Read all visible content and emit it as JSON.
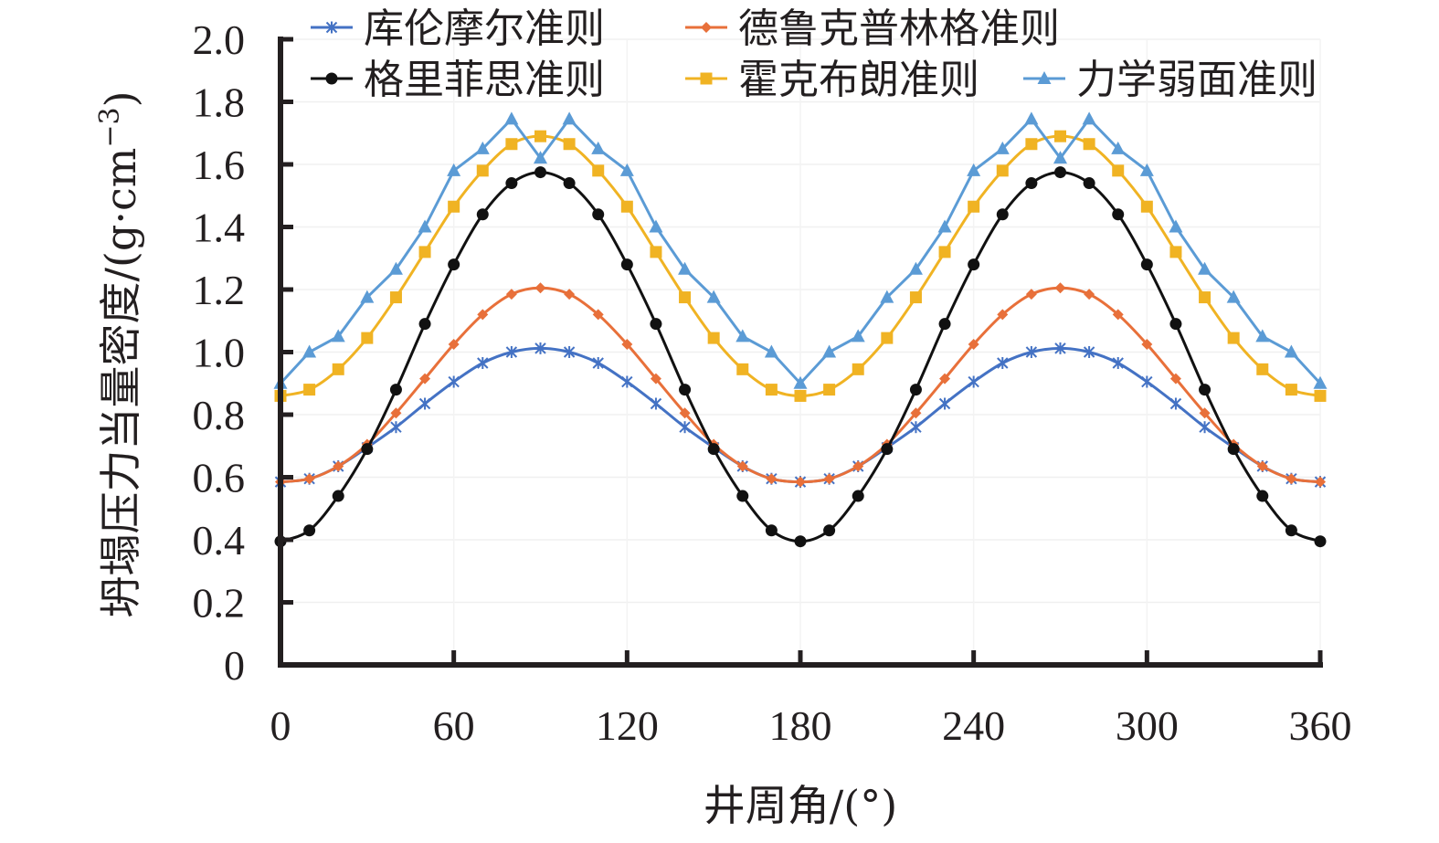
{
  "chart_data": {
    "type": "line",
    "title": "",
    "xlabel": "井周角/(°)",
    "ylabel": "坍塌压力当量密度/(g·cm",
    "ylabel_superscript": "−3",
    "ylabel_close": ")",
    "xlim": [
      0,
      360
    ],
    "ylim": [
      0,
      2.0
    ],
    "xticks": [
      0,
      60,
      120,
      180,
      240,
      300,
      360
    ],
    "xtick_labels": [
      "0",
      "60",
      "120",
      "180",
      "240",
      "300",
      "360"
    ],
    "yticks": [
      0,
      0.2,
      0.4,
      0.6,
      0.8,
      1.0,
      1.2,
      1.4,
      1.6,
      1.8,
      2.0
    ],
    "ytick_labels": [
      "0",
      "0.2",
      "0.4",
      "0.6",
      "0.8",
      "1.0",
      "1.2",
      "1.4",
      "1.6",
      "1.8",
      "2.0"
    ],
    "grid": true,
    "legend_position": "top",
    "x": [
      0,
      10,
      20,
      30,
      40,
      50,
      60,
      70,
      80,
      90,
      100,
      110,
      120,
      130,
      140,
      150,
      160,
      170,
      180,
      190,
      200,
      210,
      220,
      230,
      240,
      250,
      260,
      270,
      280,
      290,
      300,
      310,
      320,
      330,
      340,
      350,
      360
    ],
    "series": [
      {
        "name": "库伦摩尔准则",
        "color": "#4472c4",
        "marker": "asterisk",
        "smooth": true,
        "values": [
          0.585,
          0.595,
          0.635,
          0.695,
          0.76,
          0.835,
          0.905,
          0.965,
          1.0,
          1.012,
          1.0,
          0.965,
          0.905,
          0.835,
          0.76,
          0.695,
          0.635,
          0.595,
          0.585,
          0.595,
          0.635,
          0.695,
          0.76,
          0.835,
          0.905,
          0.965,
          1.0,
          1.012,
          1.0,
          0.965,
          0.905,
          0.835,
          0.76,
          0.695,
          0.635,
          0.595,
          0.585
        ]
      },
      {
        "name": "德鲁克普林格准则",
        "color": "#e8703a",
        "marker": "diamond",
        "smooth": true,
        "values": [
          0.585,
          0.595,
          0.635,
          0.705,
          0.805,
          0.915,
          1.025,
          1.12,
          1.185,
          1.205,
          1.185,
          1.12,
          1.025,
          0.915,
          0.805,
          0.705,
          0.635,
          0.595,
          0.585,
          0.595,
          0.635,
          0.705,
          0.805,
          0.915,
          1.025,
          1.12,
          1.185,
          1.205,
          1.185,
          1.12,
          1.025,
          0.915,
          0.805,
          0.705,
          0.635,
          0.595,
          0.585
        ]
      },
      {
        "name": "格里菲思准则",
        "color": "#111111",
        "marker": "circle",
        "smooth": true,
        "values": [
          0.395,
          0.43,
          0.54,
          0.69,
          0.88,
          1.09,
          1.28,
          1.44,
          1.54,
          1.575,
          1.54,
          1.44,
          1.28,
          1.09,
          0.88,
          0.69,
          0.54,
          0.43,
          0.395,
          0.43,
          0.54,
          0.69,
          0.88,
          1.09,
          1.28,
          1.44,
          1.54,
          1.575,
          1.54,
          1.44,
          1.28,
          1.09,
          0.88,
          0.69,
          0.54,
          0.43,
          0.395
        ]
      },
      {
        "name": "霍克布朗准则",
        "color": "#f0b323",
        "marker": "square",
        "smooth": true,
        "values": [
          0.86,
          0.88,
          0.945,
          1.045,
          1.175,
          1.32,
          1.465,
          1.58,
          1.665,
          1.69,
          1.665,
          1.58,
          1.465,
          1.32,
          1.175,
          1.045,
          0.945,
          0.88,
          0.86,
          0.88,
          0.945,
          1.045,
          1.175,
          1.32,
          1.465,
          1.58,
          1.665,
          1.69,
          1.665,
          1.58,
          1.465,
          1.32,
          1.175,
          1.045,
          0.945,
          0.88,
          0.86
        ]
      },
      {
        "name": "力学弱面准则",
        "color": "#5b9bd5",
        "marker": "triangle",
        "smooth": false,
        "values": [
          0.9,
          1.0,
          1.05,
          1.175,
          1.265,
          1.4,
          1.58,
          1.65,
          1.745,
          1.62,
          1.745,
          1.65,
          1.58,
          1.4,
          1.265,
          1.175,
          1.05,
          1.0,
          0.9,
          1.0,
          1.05,
          1.175,
          1.265,
          1.4,
          1.58,
          1.65,
          1.745,
          1.62,
          1.745,
          1.65,
          1.58,
          1.4,
          1.265,
          1.175,
          1.05,
          1.0,
          0.9
        ]
      }
    ]
  }
}
